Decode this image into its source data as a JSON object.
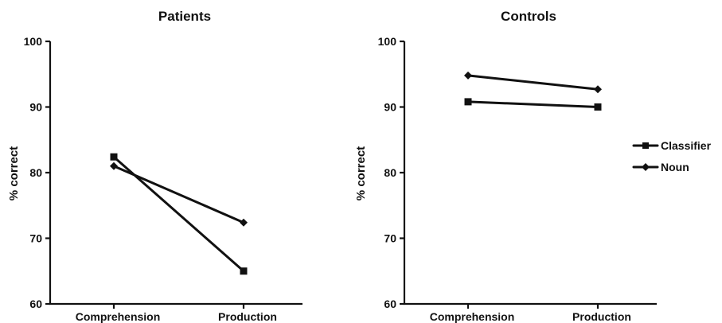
{
  "chart_data": [
    {
      "type": "line",
      "title": "Patients",
      "xlabel": "",
      "ylabel": "% correct",
      "categories": [
        "Comprehension",
        "Production"
      ],
      "ylim": [
        60,
        100
      ],
      "yticks": [
        60,
        70,
        80,
        90,
        100
      ],
      "grid": false,
      "series": [
        {
          "name": "Classifier",
          "marker": "square",
          "values": [
            82.4,
            65.0
          ]
        },
        {
          "name": "Noun",
          "marker": "diamond",
          "values": [
            81.0,
            72.4
          ]
        }
      ]
    },
    {
      "type": "line",
      "title": "Controls",
      "xlabel": "",
      "ylabel": "% correct",
      "categories": [
        "Comprehension",
        "Production"
      ],
      "ylim": [
        60,
        100
      ],
      "yticks": [
        60,
        70,
        80,
        90,
        100
      ],
      "grid": false,
      "series": [
        {
          "name": "Classifier",
          "marker": "square",
          "values": [
            90.8,
            90.0
          ]
        },
        {
          "name": "Noun",
          "marker": "diamond",
          "values": [
            94.8,
            92.7
          ]
        }
      ]
    }
  ],
  "legend": {
    "placement": "right",
    "entries": [
      {
        "label": "Classifier",
        "marker": "square"
      },
      {
        "label": "Noun",
        "marker": "diamond"
      }
    ]
  },
  "colors": {
    "ink": "#111111",
    "background": "#ffffff"
  }
}
